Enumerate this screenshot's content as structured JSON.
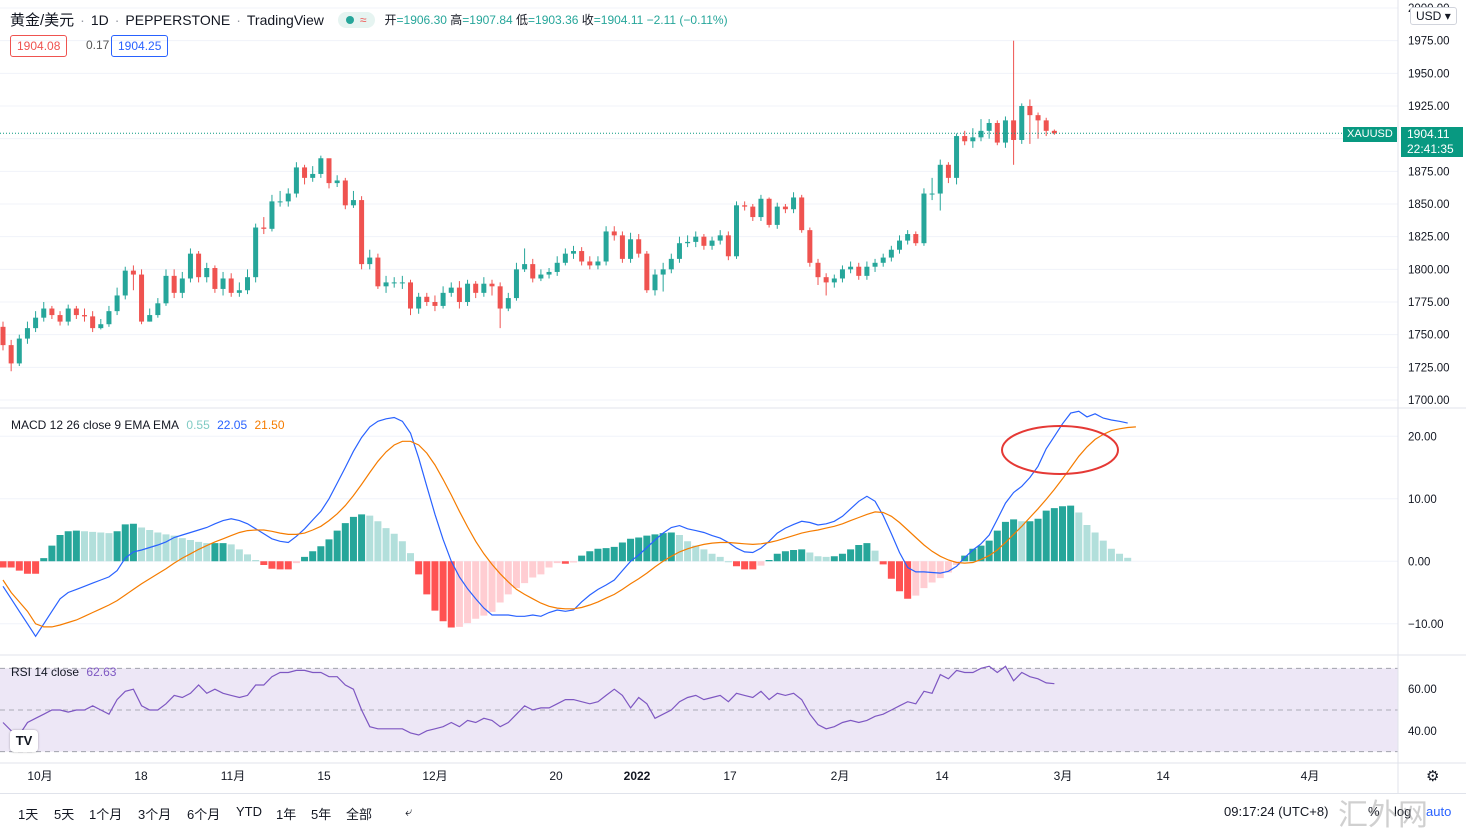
{
  "header": {
    "symbol": "黄金/美元",
    "interval": "1D",
    "exchange": "PEPPERSTONE",
    "platform": "TradingView",
    "ohlc_open_label": "开",
    "ohlc_open": "=1906.30",
    "ohlc_high_label": "高",
    "ohlc_high": "=1907.84",
    "ohlc_low_label": "低",
    "ohlc_low": "=1903.36",
    "ohlc_close_label": "收",
    "ohlc_close": "=1904.11",
    "change": "−2.11 (−0.11%)"
  },
  "quote": {
    "bid": "1904.08",
    "spread": "0.17",
    "ask": "1904.25"
  },
  "currency_button": "USD",
  "last_price": {
    "ticker": "XAUUSD",
    "price": "1904.11",
    "countdown": "22:41:35"
  },
  "price_axis": [
    "2000.00",
    "1975.00",
    "1950.00",
    "1925.00",
    "1900.00",
    "1875.00",
    "1850.00",
    "1825.00",
    "1800.00",
    "1775.00",
    "1750.00",
    "1725.00",
    "1700.00"
  ],
  "macd": {
    "label": "MACD 12 26 close 9 EMA EMA",
    "hist_value": "0.55",
    "macd_value": "22.05",
    "signal_value": "21.50",
    "axis": [
      "20.00",
      "10.00",
      "0.00",
      "−10.00"
    ]
  },
  "rsi": {
    "label": "RSI 14 close",
    "value": "62.63",
    "axis": [
      "60.00",
      "40.00"
    ]
  },
  "time_axis": [
    "10月",
    "18",
    "11月",
    "15",
    "12月",
    "20",
    "2022",
    "17",
    "2月",
    "14",
    "3月",
    "14",
    "4月"
  ],
  "bottom_bar": {
    "ranges": [
      "1天",
      "5天",
      "1个月",
      "3个月",
      "6个月",
      "YTD",
      "1年",
      "5年",
      "全部"
    ],
    "compare_icon": "goto-date-icon",
    "clock": "09:17:24 (UTC+8)",
    "percent_label": "%",
    "log_label": "log",
    "auto_label": "auto"
  },
  "watermark": "汇外网",
  "colors": {
    "up": "#26a69a",
    "down": "#ef5350",
    "macd_line": "#2962ff",
    "signal_line": "#f57c00",
    "rsi_line": "#7e57c2",
    "rsi_band": "#ede7f6",
    "annotation": "#e53935"
  },
  "chart_data": [
    {
      "type": "candlestick",
      "title": "黄金/美元 1D",
      "ylim": [
        1700,
        2000
      ],
      "x_start": "10月",
      "open": [
        1756,
        1742,
        1728,
        1747,
        1755,
        1763,
        1770,
        1765,
        1760,
        1770,
        1765,
        1764,
        1755,
        1758,
        1768,
        1780,
        1799,
        1796,
        1760,
        1765,
        1774,
        1795,
        1782,
        1793,
        1812,
        1794,
        1801,
        1785,
        1793,
        1782,
        1784,
        1794,
        1832,
        1831,
        1852,
        1852,
        1858,
        1878,
        1870,
        1873,
        1885,
        1866,
        1868,
        1849,
        1853,
        1804,
        1809,
        1787,
        1790,
        1790,
        1790,
        1770,
        1779,
        1775,
        1772,
        1782,
        1786,
        1775,
        1789,
        1782,
        1789,
        1787,
        1770,
        1778,
        1800,
        1804,
        1793,
        1796,
        1798,
        1805,
        1812,
        1814,
        1806,
        1803,
        1806,
        1829,
        1826,
        1808,
        1823,
        1812,
        1784,
        1796,
        1800,
        1808,
        1820,
        1821,
        1825,
        1818,
        1822,
        1826,
        1810,
        1849,
        1848,
        1840,
        1854,
        1834,
        1848,
        1846,
        1855,
        1830,
        1805,
        1794,
        1790,
        1793,
        1800,
        1802,
        1795,
        1802,
        1805,
        1809,
        1815,
        1822,
        1827,
        1820,
        1858,
        1858,
        1880,
        1870,
        1902,
        1898,
        1901,
        1906,
        1912,
        1897,
        1914,
        1899,
        1925,
        1918,
        1914,
        1906
      ],
      "close": [
        1742,
        1728,
        1747,
        1755,
        1763,
        1770,
        1765,
        1760,
        1770,
        1765,
        1764,
        1755,
        1758,
        1768,
        1780,
        1799,
        1796,
        1760,
        1765,
        1774,
        1795,
        1782,
        1793,
        1812,
        1794,
        1801,
        1785,
        1793,
        1782,
        1784,
        1794,
        1832,
        1831,
        1852,
        1852,
        1858,
        1878,
        1870,
        1873,
        1885,
        1866,
        1868,
        1849,
        1853,
        1804,
        1809,
        1787,
        1790,
        1790,
        1790,
        1770,
        1779,
        1775,
        1772,
        1782,
        1786,
        1775,
        1789,
        1782,
        1789,
        1787,
        1770,
        1778,
        1800,
        1804,
        1793,
        1796,
        1798,
        1805,
        1812,
        1814,
        1806,
        1803,
        1806,
        1829,
        1826,
        1808,
        1823,
        1812,
        1784,
        1796,
        1800,
        1808,
        1820,
        1821,
        1825,
        1818,
        1822,
        1826,
        1810,
        1849,
        1848,
        1840,
        1854,
        1834,
        1848,
        1846,
        1855,
        1830,
        1805,
        1794,
        1790,
        1793,
        1800,
        1802,
        1795,
        1802,
        1805,
        1809,
        1815,
        1822,
        1827,
        1820,
        1858,
        1858,
        1880,
        1870,
        1902,
        1898,
        1901,
        1906,
        1912,
        1897,
        1914,
        1899,
        1925,
        1918,
        1914,
        1906,
        1904
      ],
      "high": [
        1760,
        1746,
        1750,
        1760,
        1768,
        1775,
        1772,
        1768,
        1773,
        1772,
        1770,
        1768,
        1762,
        1772,
        1786,
        1802,
        1803,
        1800,
        1770,
        1778,
        1800,
        1800,
        1798,
        1816,
        1814,
        1805,
        1803,
        1798,
        1797,
        1790,
        1800,
        1835,
        1840,
        1857,
        1860,
        1862,
        1882,
        1880,
        1879,
        1887,
        1882,
        1872,
        1870,
        1860,
        1856,
        1815,
        1812,
        1795,
        1794,
        1795,
        1792,
        1782,
        1782,
        1780,
        1787,
        1790,
        1791,
        1792,
        1791,
        1794,
        1792,
        1790,
        1782,
        1805,
        1816,
        1808,
        1800,
        1801,
        1810,
        1816,
        1818,
        1817,
        1810,
        1810,
        1833,
        1833,
        1829,
        1828,
        1827,
        1814,
        1800,
        1805,
        1812,
        1825,
        1826,
        1829,
        1827,
        1825,
        1830,
        1829,
        1852,
        1852,
        1850,
        1857,
        1855,
        1851,
        1850,
        1859,
        1857,
        1832,
        1808,
        1797,
        1796,
        1803,
        1806,
        1805,
        1806,
        1808,
        1812,
        1818,
        1826,
        1830,
        1829,
        1862,
        1870,
        1884,
        1882,
        1904,
        1906,
        1908,
        1915,
        1915,
        1914,
        1917,
        1975,
        1927,
        1930,
        1920,
        1916,
        1907
      ],
      "low": [
        1738,
        1722,
        1726,
        1743,
        1752,
        1760,
        1762,
        1757,
        1757,
        1762,
        1760,
        1752,
        1754,
        1756,
        1765,
        1777,
        1784,
        1758,
        1760,
        1763,
        1772,
        1778,
        1778,
        1790,
        1790,
        1790,
        1782,
        1780,
        1779,
        1779,
        1781,
        1790,
        1827,
        1829,
        1848,
        1848,
        1855,
        1865,
        1867,
        1870,
        1862,
        1863,
        1846,
        1847,
        1800,
        1800,
        1785,
        1782,
        1786,
        1785,
        1765,
        1766,
        1772,
        1768,
        1770,
        1779,
        1770,
        1772,
        1778,
        1779,
        1780,
        1755,
        1768,
        1776,
        1798,
        1790,
        1791,
        1793,
        1795,
        1803,
        1808,
        1803,
        1800,
        1800,
        1803,
        1822,
        1805,
        1805,
        1809,
        1782,
        1780,
        1783,
        1797,
        1805,
        1817,
        1817,
        1815,
        1815,
        1819,
        1807,
        1808,
        1845,
        1837,
        1837,
        1832,
        1831,
        1843,
        1843,
        1828,
        1802,
        1788,
        1780,
        1786,
        1790,
        1797,
        1792,
        1792,
        1798,
        1802,
        1806,
        1812,
        1819,
        1818,
        1818,
        1853,
        1845,
        1866,
        1865,
        1895,
        1893,
        1898,
        1900,
        1895,
        1893,
        1880,
        1896,
        1896,
        1900,
        1902,
        1903
      ]
    },
    {
      "type": "line",
      "title": "MACD 12 26 close 9 EMA EMA",
      "ylim": [
        -15,
        25
      ],
      "series": [
        {
          "name": "MACD",
          "values": [
            -4,
            -6,
            -8,
            -10,
            -12,
            -10,
            -8,
            -6,
            -5,
            -4.5,
            -4,
            -3.5,
            -3,
            -2.5,
            -1.5,
            0.5,
            1.5,
            1.8,
            2.2,
            2.6,
            3.1,
            3.8,
            4.2,
            4.6,
            5.0,
            5.4,
            6.0,
            6.5,
            6.8,
            6.5,
            6.0,
            5.2,
            4.4,
            3.6,
            3.2,
            3.0,
            4.0,
            5.2,
            6.6,
            8.0,
            10.0,
            12.5,
            15.0,
            17.6,
            19.8,
            21.5,
            22.4,
            22.8,
            23.0,
            22.4,
            20.5,
            16.5,
            12.0,
            7.5,
            3.5,
            0.0,
            -2.5,
            -4.4,
            -6.0,
            -7.5,
            -8.6,
            -8.6,
            -8.6,
            -8.8,
            -8.8,
            -8.6,
            -8.8,
            -8.2,
            -7.8,
            -8.0,
            -7.8,
            -6.5,
            -5.4,
            -4.5,
            -3.8,
            -3.0,
            -1.5,
            0.0,
            1.0,
            2.2,
            3.4,
            4.5,
            5.4,
            5.7,
            5.2,
            4.9,
            4.6,
            4.1,
            3.7,
            3.0,
            2.1,
            1.5,
            1.4,
            2.1,
            3.2,
            4.5,
            5.3,
            5.9,
            6.4,
            6.2,
            5.8,
            6.0,
            6.4,
            7.2,
            8.4,
            9.6,
            10.4,
            9.6,
            7.3,
            4.4,
            1.4,
            -1.0,
            -1.7,
            -1.7,
            -1.8,
            -1.9,
            -1.6,
            -0.8,
            0.6,
            1.8,
            2.8,
            4.2,
            6.7,
            9.3,
            11.0,
            12.0,
            13.4,
            15.2,
            18.0,
            20.0,
            22.0,
            23.7,
            24.0,
            23.1,
            23.6,
            22.9,
            22.6,
            22.4,
            22.1
          ]
        },
        {
          "name": "Signal",
          "values": [
            -3,
            -5,
            -6.5,
            -8,
            -10,
            -10.5,
            -10.5,
            -10.2,
            -9.8,
            -9.4,
            -8.8,
            -8.2,
            -7.6,
            -7.0,
            -6.3,
            -5.4,
            -4.5,
            -3.6,
            -2.8,
            -2.0,
            -1.2,
            -0.3,
            0.5,
            1.2,
            1.9,
            2.5,
            3.1,
            3.6,
            4.1,
            4.6,
            4.9,
            5.0,
            5.0,
            4.8,
            4.5,
            4.3,
            4.3,
            4.5,
            5.0,
            5.6,
            6.5,
            7.6,
            8.9,
            10.5,
            12.3,
            14.2,
            16.0,
            17.5,
            18.6,
            19.2,
            19.2,
            18.6,
            17.3,
            15.4,
            13.1,
            10.6,
            8.0,
            5.5,
            3.2,
            1.2,
            -0.5,
            -2.0,
            -3.3,
            -4.5,
            -5.3,
            -6.0,
            -6.7,
            -7.2,
            -7.5,
            -7.6,
            -7.6,
            -7.4,
            -7.0,
            -6.5,
            -5.9,
            -5.3,
            -4.5,
            -3.6,
            -2.8,
            -1.9,
            -0.9,
            0.0,
            0.8,
            1.5,
            2.0,
            2.4,
            2.7,
            2.9,
            3.0,
            3.0,
            2.9,
            2.8,
            2.7,
            2.8,
            3.0,
            3.3,
            3.7,
            4.1,
            4.5,
            4.8,
            5.0,
            5.3,
            5.6,
            6.0,
            6.5,
            7.0,
            7.5,
            7.9,
            7.8,
            7.2,
            6.2,
            5.0,
            3.8,
            2.6,
            1.6,
            0.8,
            0.2,
            -0.2,
            -0.3,
            -0.2,
            0.3,
            0.9,
            1.8,
            3.0,
            4.3,
            5.6,
            7.0,
            8.4,
            9.9,
            11.5,
            13.2,
            15.0,
            16.8,
            18.3,
            19.5,
            20.3,
            20.9,
            21.2,
            21.4,
            21.5
          ]
        },
        {
          "name": "Histogram",
          "values": [
            -1,
            -1,
            -1.5,
            -2,
            -2,
            0.5,
            2.5,
            4.2,
            4.8,
            4.9,
            4.8,
            4.7,
            4.6,
            4.5,
            4.8,
            5.9,
            6.0,
            5.4,
            5.0,
            4.6,
            4.3,
            4.1,
            3.7,
            3.4,
            3.1,
            2.9,
            2.9,
            2.9,
            2.7,
            1.9,
            1.1,
            0.2,
            -0.6,
            -1.2,
            -1.3,
            -1.3,
            -0.3,
            0.7,
            1.6,
            2.4,
            3.5,
            4.9,
            6.1,
            7.1,
            7.5,
            7.3,
            6.4,
            5.3,
            4.4,
            3.2,
            1.3,
            -2.1,
            -5.3,
            -7.9,
            -9.6,
            -10.6,
            -10.5,
            -9.9,
            -9.2,
            -8.7,
            -8.1,
            -6.6,
            -5.3,
            -4.3,
            -3.5,
            -2.6,
            -2.1,
            -1.0,
            -0.3,
            -0.4,
            -0.2,
            0.9,
            1.6,
            2.0,
            2.1,
            2.3,
            3.0,
            3.6,
            3.8,
            4.1,
            4.3,
            4.5,
            4.6,
            4.2,
            3.2,
            2.5,
            1.9,
            1.2,
            0.7,
            0.0,
            -0.8,
            -1.3,
            -1.3,
            -0.7,
            0.2,
            1.2,
            1.6,
            1.8,
            1.9,
            1.4,
            0.8,
            0.7,
            0.8,
            1.2,
            1.9,
            2.6,
            2.9,
            1.7,
            -0.5,
            -2.8,
            -4.8,
            -6.0,
            -5.5,
            -4.3,
            -3.4,
            -2.7,
            -1.8,
            -0.6,
            0.9,
            2.0,
            2.5,
            3.3,
            4.9,
            6.3,
            6.7,
            6.4,
            6.4,
            6.8,
            8.1,
            8.5,
            8.8,
            8.9,
            7.8,
            5.8,
            4.6,
            3.3,
            2.0,
            1.2,
            0.55
          ]
        }
      ]
    },
    {
      "type": "line",
      "title": "RSI 14 close",
      "ylim": [
        26,
        74
      ],
      "bands": [
        30,
        50,
        70
      ],
      "series": [
        {
          "name": "RSI",
          "values": [
            44,
            40,
            38,
            44,
            46,
            48,
            50,
            50,
            49,
            50,
            50,
            52,
            50,
            48,
            55,
            59,
            60,
            52,
            50,
            50,
            53,
            57,
            56,
            58,
            62,
            58,
            60,
            58,
            57,
            56,
            57,
            62,
            62,
            66,
            68,
            68,
            69,
            69,
            68,
            68,
            66,
            66,
            62,
            60,
            50,
            42,
            41,
            41,
            41,
            41,
            39,
            38,
            40,
            41,
            42,
            44,
            42,
            45,
            44,
            46,
            45,
            42,
            44,
            48,
            52,
            50,
            51,
            51,
            53,
            55,
            55,
            54,
            53,
            54,
            57,
            60,
            57,
            51,
            56,
            53,
            46,
            48,
            50,
            54,
            56,
            57,
            55,
            56,
            57,
            54,
            58,
            57,
            56,
            59,
            55,
            58,
            57,
            58,
            55,
            48,
            43,
            41,
            42,
            44,
            45,
            44,
            45,
            47,
            48,
            50,
            52,
            54,
            53,
            59,
            58,
            67,
            65,
            69,
            68,
            68,
            70,
            71,
            68,
            71,
            64,
            68,
            66,
            65,
            63,
            62.63
          ]
        }
      ]
    }
  ]
}
